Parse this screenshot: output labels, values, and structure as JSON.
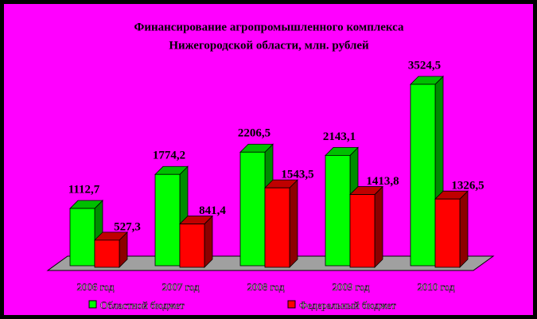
{
  "chart_data": {
    "type": "bar3d",
    "title": "Финансирование агропромышленного комплекса",
    "subtitle": "Нижегородской области, млн. рублей",
    "categories": [
      "2006 год",
      "2007 год",
      "2008 год",
      "2009 год",
      "2010 год"
    ],
    "series": [
      {
        "name": "Областной бюджет",
        "color": "#00ff00",
        "values": [
          1112.7,
          1774.2,
          2206.5,
          2143.1,
          3524.5
        ],
        "value_labels": [
          "1112,7",
          "1774,2",
          "2206,5",
          "2143,1",
          "3524,5"
        ]
      },
      {
        "name": "Федеральный бюджет",
        "color": "#ff0000",
        "values": [
          527.3,
          841.4,
          1543.5,
          1413.8,
          1326.5
        ],
        "value_labels": [
          "527,3",
          "841,4",
          "1543,5",
          "1413,8",
          "1326,5"
        ]
      }
    ]
  }
}
